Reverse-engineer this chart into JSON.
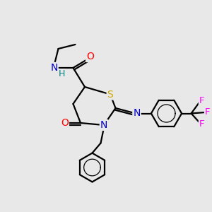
{
  "background_color": "#e8e8e8",
  "atom_colors": {
    "N": "#0000cc",
    "O": "#ff0000",
    "S": "#ccaa00",
    "F": "#ff00ff",
    "H": "#008080",
    "C": "#000000"
  },
  "bond_color": "#000000",
  "figsize": [
    3.0,
    3.0
  ],
  "dpi": 100,
  "xlim": [
    0,
    10
  ],
  "ylim": [
    0,
    10
  ]
}
